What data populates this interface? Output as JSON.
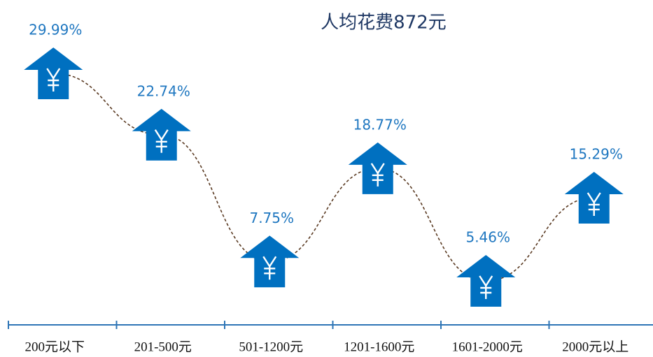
{
  "chart_data": {
    "type": "arrow-line",
    "title": "人均花费872元",
    "categories": [
      "200元以下",
      "201-500元",
      "501-1200元",
      "1201-1600元",
      "1601-2000元",
      "2000元以上"
    ],
    "values": [
      29.99,
      22.74,
      7.75,
      18.77,
      5.46,
      15.29
    ],
    "value_labels": [
      "29.99%",
      "22.74%",
      "7.75%",
      "18.77%",
      "5.46%",
      "15.29%"
    ],
    "color": "#0070c0",
    "line_color": "#5a3a22"
  }
}
